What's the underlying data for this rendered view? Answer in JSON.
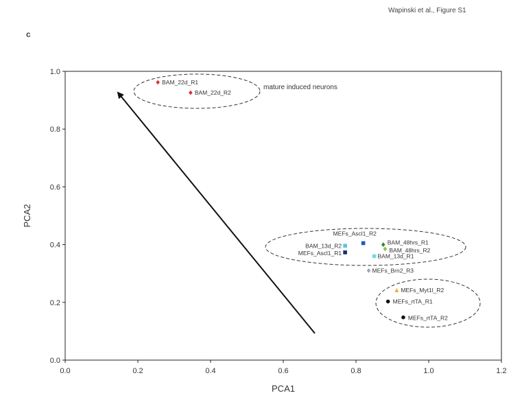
{
  "caption": "Wapinski et al., Figure S1",
  "panel_label": "c",
  "chart_data": {
    "type": "scatter",
    "title": "",
    "xlabel": "PCA1",
    "ylabel": "PCA2",
    "xlim": [
      0.0,
      1.2
    ],
    "ylim": [
      0.0,
      1.0
    ],
    "x_ticks": [
      "0.0",
      "0.2",
      "0.4",
      "0.6",
      "0.8",
      "1.0",
      "1.2"
    ],
    "y_ticks": [
      "0.0",
      "0.2",
      "0.4",
      "0.6",
      "0.8",
      "1.0"
    ],
    "grid": false,
    "points": [
      {
        "label": "BAM_22d_R1",
        "x": 0.255,
        "y": 0.962,
        "color": "#e0303a",
        "marker": "diamond"
      },
      {
        "label": "BAM_22d_R2",
        "x": 0.345,
        "y": 0.926,
        "color": "#e0303a",
        "marker": "diamond"
      },
      {
        "label": "MEFs_Ascl1_R2",
        "x": 0.82,
        "y": 0.405,
        "color": "#2456c8",
        "marker": "square"
      },
      {
        "label": "BAM_13d_R2",
        "x": 0.77,
        "y": 0.396,
        "color": "#5bc2e7",
        "marker": "square"
      },
      {
        "label": "BAM_48hrs_R1",
        "x": 0.875,
        "y": 0.4,
        "color": "#2a8a3a",
        "marker": "diamond"
      },
      {
        "label": "BAM_48hrs_R2",
        "x": 0.88,
        "y": 0.385,
        "color": "#8bc34a",
        "marker": "diamond"
      },
      {
        "label": "MEFs_Ascl1_R1",
        "x": 0.77,
        "y": 0.373,
        "color": "#1a2b6b",
        "marker": "square"
      },
      {
        "label": "BAM_13d_R1",
        "x": 0.85,
        "y": 0.36,
        "color": "#7fd6ef",
        "marker": "square"
      },
      {
        "label": "MEFs_Brn2_R3",
        "x": 0.835,
        "y": 0.31,
        "color": "#9aa5b1",
        "marker": "diamond"
      },
      {
        "label": "MEFs_Myt1l_R2",
        "x": 0.912,
        "y": 0.242,
        "color": "#f0a830",
        "marker": "triangle"
      },
      {
        "label": "MEFs_rtTA_R1",
        "x": 0.888,
        "y": 0.203,
        "color": "#111111",
        "marker": "circle"
      },
      {
        "label": "MEFs_rtTA_R2",
        "x": 0.93,
        "y": 0.148,
        "color": "#111111",
        "marker": "circle"
      }
    ],
    "annotations": [
      {
        "text": "mature induced neurons"
      }
    ]
  }
}
